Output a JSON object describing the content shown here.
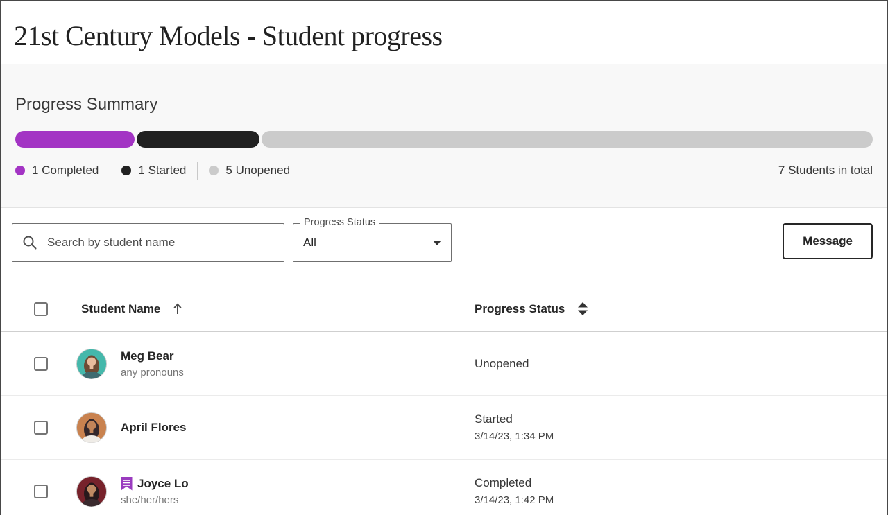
{
  "header": {
    "title": "21st Century Models - Student progress"
  },
  "summary": {
    "heading": "Progress Summary",
    "total_label": "7 Students in total",
    "bar": {
      "segments": [
        {
          "label": "Completed",
          "color": "#a334c4",
          "percent": 13.9
        },
        {
          "label": "Started",
          "color": "#212121",
          "percent": 14.3
        },
        {
          "label": "Unopened",
          "color": "#cbcbcb",
          "percent": 71.3
        }
      ]
    },
    "legend": [
      {
        "count": "1",
        "label": "Completed",
        "color": "#a334c4"
      },
      {
        "count": "1",
        "label": "Started",
        "color": "#212121"
      },
      {
        "count": "5",
        "label": "Unopened",
        "color": "#cbcbcb"
      }
    ]
  },
  "controls": {
    "search_placeholder": "Search by student name",
    "filter_label": "Progress Status",
    "filter_value": "All",
    "message_button": "Message"
  },
  "table": {
    "columns": [
      {
        "label": "Student Name",
        "sort": "asc"
      },
      {
        "label": "Progress Status",
        "sort": "both"
      }
    ],
    "rows": [
      {
        "name": "Meg Bear",
        "pronouns": "any pronouns",
        "accommodations": false,
        "status": "Unopened",
        "timestamp": "",
        "avatar": {
          "bg": "#45b8ab",
          "hair": "#6e4a33",
          "skin": "#e9bc9d",
          "shirt": "#3e6b70"
        }
      },
      {
        "name": "April Flores",
        "pronouns": "",
        "accommodations": false,
        "status": "Started",
        "timestamp": "3/14/23, 1:34 PM",
        "avatar": {
          "bg": "#c9824f",
          "hair": "#33272b",
          "skin": "#c18459",
          "shirt": "#efece7"
        }
      },
      {
        "name": "Joyce Lo",
        "pronouns": "she/her/hers",
        "accommodations": true,
        "status": "Completed",
        "timestamp": "3/14/23, 1:42 PM",
        "avatar": {
          "bg": "#77222b",
          "hair": "#27191c",
          "skin": "#c08a63",
          "shirt": "#3a2a2e"
        }
      }
    ],
    "accommodations_color": "#9a3bbf"
  }
}
